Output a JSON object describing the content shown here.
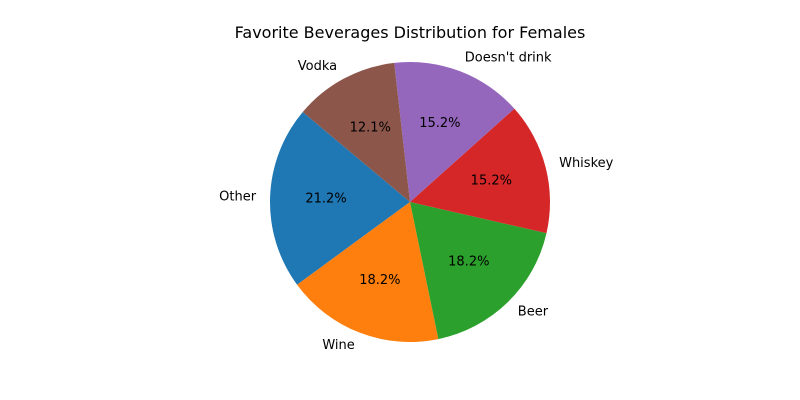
{
  "chart_data": {
    "type": "pie",
    "title": "Favorite Beverages Distribution for Females",
    "start_angle": 140,
    "direction": "counterclockwise",
    "slices": [
      {
        "label": "Other",
        "value": 21.2,
        "pct_label": "21.2%",
        "color": "#1f77b4"
      },
      {
        "label": "Wine",
        "value": 18.2,
        "pct_label": "18.2%",
        "color": "#ff7f0e"
      },
      {
        "label": "Beer",
        "value": 18.2,
        "pct_label": "18.2%",
        "color": "#2ca02c"
      },
      {
        "label": "Whiskey",
        "value": 15.2,
        "pct_label": "15.2%",
        "color": "#d62728"
      },
      {
        "label": "Doesn't drink",
        "value": 15.2,
        "pct_label": "15.2%",
        "color": "#9467bd"
      },
      {
        "label": "Vodka",
        "value": 12.1,
        "pct_label": "12.1%",
        "color": "#8c564b"
      }
    ]
  }
}
